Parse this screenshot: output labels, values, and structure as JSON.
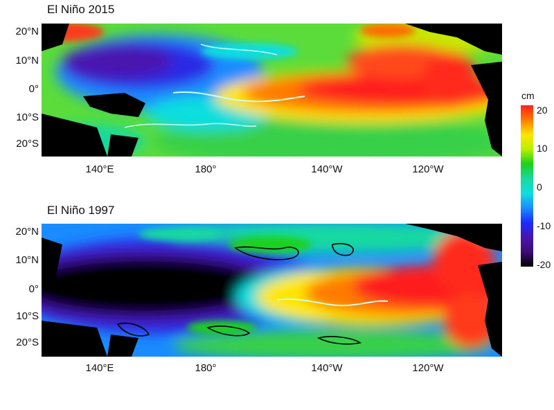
{
  "panels": [
    {
      "title": "El Niño 2015",
      "lat_labels": [
        "20°N",
        "10°N",
        "0°",
        "10°S",
        "20°S"
      ],
      "lon_labels": [
        "140°E",
        "180°",
        "140°W",
        "120°W"
      ]
    },
    {
      "title": "El Niño 1997",
      "lat_labels": [
        "20°N",
        "10°N",
        "0°",
        "10°S",
        "20°S"
      ],
      "lon_labels": [
        "140°E",
        "180°",
        "140°W",
        "120°W"
      ]
    }
  ],
  "colorbar": {
    "unit": "cm",
    "ticks": [
      "20",
      "10",
      "0",
      "-10",
      "-20"
    ],
    "colors": [
      "#ff1f1f",
      "#ff7a00",
      "#ffe600",
      "#b6f000",
      "#1bd11b",
      "#18d9a0",
      "#10dede",
      "#1a8cff",
      "#1a2cff",
      "#4a14b0",
      "#3a0d73",
      "#000000"
    ]
  },
  "colors": {
    "land": "#000000",
    "contour_zero": "#c8fff2",
    "contour_neg": "#000000"
  }
}
